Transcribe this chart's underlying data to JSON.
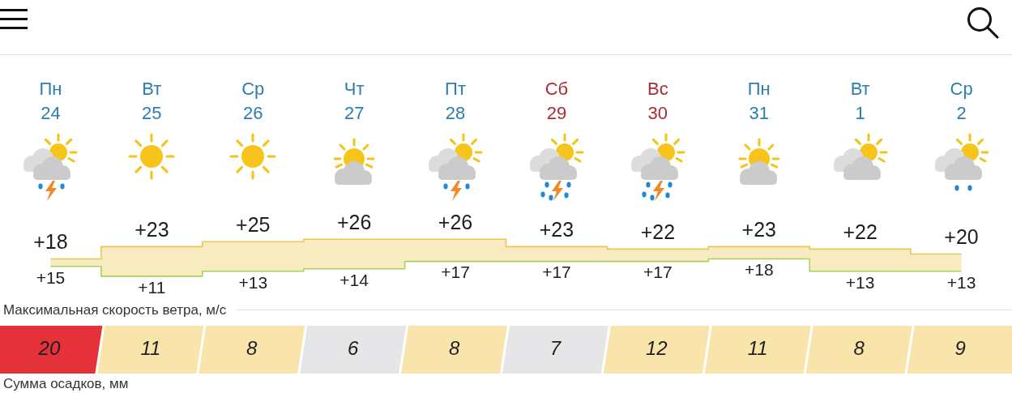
{
  "chart_data": [
    {
      "type": "step",
      "categories": [
        "Пн 24",
        "Вт 25",
        "Ср 26",
        "Чт 27",
        "Пт 28",
        "Сб 29",
        "Вс 30",
        "Пн 31",
        "Вт 1",
        "Ср 2"
      ],
      "series": [
        {
          "color": "#ecc750",
          "values": [
            18,
            23,
            25,
            26,
            26,
            23,
            22,
            23,
            22,
            20
          ],
          "value_labels": [
            "+18",
            "+23",
            "+25",
            "+26",
            "+26",
            "+23",
            "+22",
            "+23",
            "+22",
            "+20"
          ],
          "lower": [
            15,
            11,
            13,
            14,
            17,
            17,
            17,
            18,
            13,
            13
          ],
          "upper": [
            18,
            23,
            25,
            26,
            26,
            23,
            22,
            23,
            22,
            20
          ]
        },
        {
          "color": "#a8d25c",
          "values": [
            15,
            11,
            13,
            14,
            17,
            17,
            17,
            18,
            13,
            13
          ],
          "value_labels": [
            "+15",
            "+11",
            "+13",
            "+14",
            "+17",
            "+17",
            "+17",
            "+18",
            "+13",
            "+13"
          ]
        }
      ],
      "tick_labels": "x",
      "marker": "none"
    },
    {
      "type": "heatmap",
      "title": "Максимальная скорость ветра, м/с",
      "categories": [
        null,
        null,
        null,
        null,
        null,
        null,
        null,
        null,
        null,
        null
      ],
      "y_categories": [
        null
      ],
      "cells": [
        [
          20,
          11,
          8,
          6,
          8,
          7,
          12,
          11,
          8,
          9
        ]
      ],
      "colors": [
        "#e5323a",
        "#f9e5ab",
        "#f9e5ab",
        "#e6e6e8",
        "#f9e5ab",
        "#e6e6e8",
        "#f9e5ab",
        "#f9e5ab",
        "#f9e5ab",
        "#f9e5ab"
      ],
      "data_labels": true,
      "tick_labels": false,
      "annotations": [
        "Сумма осадков, мм"
      ]
    }
  ]
}
